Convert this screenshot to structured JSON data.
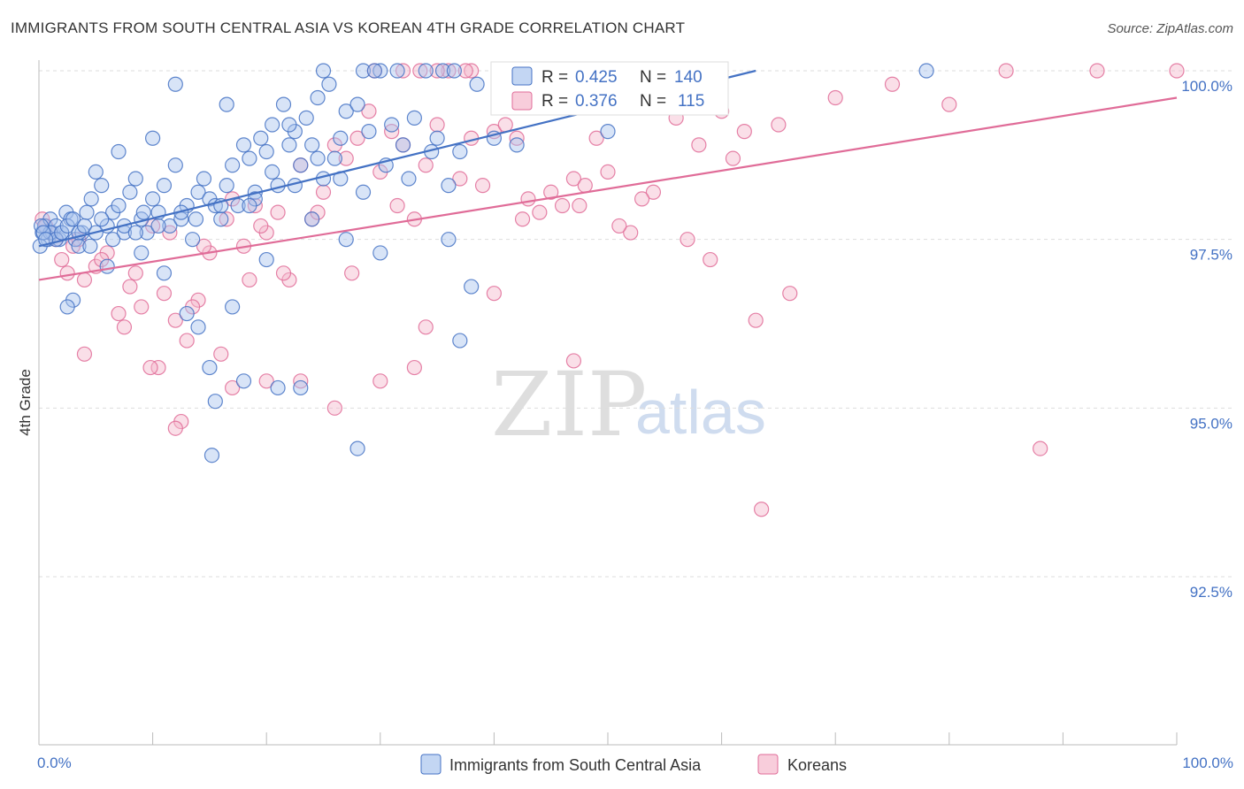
{
  "title": "IMMIGRANTS FROM SOUTH CENTRAL ASIA VS KOREAN 4TH GRADE CORRELATION CHART",
  "source": "Source: ZipAtlas.com",
  "colors": {
    "blue": "#4472c4",
    "blue_fill": "#a9c4ee",
    "pink": "#e06c98",
    "pink_fill": "#f5b8cc",
    "grid": "#dddddd"
  },
  "legend": {
    "r_label": "R =",
    "n_label": "N =",
    "rows": [
      {
        "r": "0.425",
        "n": "140"
      },
      {
        "r": "0.376",
        "n": "115"
      }
    ]
  },
  "bottom_legend": [
    "Immigrants from South Central Asia",
    "Koreans"
  ],
  "watermark": {
    "zip": "ZIP",
    "atlas": "atlas"
  },
  "chart_data": {
    "type": "scatter",
    "ylabel": "4th Grade",
    "xlim": [
      0,
      100
    ],
    "ylim": [
      89.5,
      100.4
    ],
    "x_tick_labels": [
      "0.0%",
      "100.0%"
    ],
    "y_ticks": [
      100,
      97.5,
      95,
      92.5
    ],
    "y_tick_labels": [
      "100.0%",
      "97.5%",
      "95.0%",
      "92.5%"
    ],
    "grid": true,
    "legend_position": "top-center",
    "series": [
      {
        "name": "Immigrants from South Central Asia",
        "color": "#4472c4",
        "trend": {
          "x": [
            0,
            63
          ],
          "y": [
            97.4,
            100.0
          ]
        },
        "points": [
          [
            0.3,
            97.6
          ],
          [
            0.5,
            97.7
          ],
          [
            0.8,
            97.5
          ],
          [
            1.0,
            97.8
          ],
          [
            1.2,
            97.6
          ],
          [
            1.5,
            97.7
          ],
          [
            1.8,
            97.5
          ],
          [
            2.0,
            97.6
          ],
          [
            2.4,
            97.9
          ],
          [
            2.8,
            97.8
          ],
          [
            3.2,
            97.5
          ],
          [
            3.5,
            97.4
          ],
          [
            3.8,
            97.6
          ],
          [
            4.2,
            97.9
          ],
          [
            4.6,
            98.1
          ],
          [
            5.0,
            98.5
          ],
          [
            5.5,
            98.3
          ],
          [
            6.0,
            97.7
          ],
          [
            6.5,
            97.9
          ],
          [
            7.0,
            98.0
          ],
          [
            7.5,
            97.6
          ],
          [
            8.0,
            98.2
          ],
          [
            8.5,
            98.4
          ],
          [
            9.0,
            97.8
          ],
          [
            9.5,
            97.6
          ],
          [
            10.0,
            98.1
          ],
          [
            10.5,
            97.9
          ],
          [
            11.0,
            98.3
          ],
          [
            11.5,
            97.7
          ],
          [
            12.0,
            98.6
          ],
          [
            12.5,
            97.8
          ],
          [
            13.0,
            98.0
          ],
          [
            13.5,
            97.5
          ],
          [
            14.0,
            98.2
          ],
          [
            14.5,
            98.4
          ],
          [
            15.0,
            98.1
          ],
          [
            15.5,
            98.0
          ],
          [
            16.0,
            97.8
          ],
          [
            16.5,
            98.3
          ],
          [
            17.0,
            98.6
          ],
          [
            17.5,
            98.0
          ],
          [
            18.0,
            98.9
          ],
          [
            18.5,
            98.7
          ],
          [
            19.0,
            98.2
          ],
          [
            19.5,
            99.0
          ],
          [
            20.0,
            98.8
          ],
          [
            20.5,
            99.2
          ],
          [
            21.0,
            98.3
          ],
          [
            21.5,
            99.5
          ],
          [
            22.0,
            98.9
          ],
          [
            22.5,
            99.1
          ],
          [
            23.0,
            98.6
          ],
          [
            23.5,
            99.3
          ],
          [
            24.0,
            98.9
          ],
          [
            24.5,
            99.6
          ],
          [
            25.0,
            98.4
          ],
          [
            25.5,
            99.8
          ],
          [
            26.0,
            98.7
          ],
          [
            26.5,
            99.0
          ],
          [
            27.0,
            99.4
          ],
          [
            28.0,
            99.5
          ],
          [
            29.0,
            99.1
          ],
          [
            30.0,
            100.0
          ],
          [
            31.0,
            99.2
          ],
          [
            32.0,
            98.9
          ],
          [
            33.0,
            99.3
          ],
          [
            34.0,
            100.0
          ],
          [
            35.0,
            99.0
          ],
          [
            36.0,
            98.3
          ],
          [
            37.0,
            98.8
          ],
          [
            38.0,
            96.8
          ],
          [
            40.0,
            99.0
          ],
          [
            42.0,
            98.9
          ],
          [
            50.0,
            99.1
          ],
          [
            78.0,
            100.0
          ],
          [
            28.5,
            100.0
          ],
          [
            29.5,
            100.0
          ],
          [
            31.5,
            100.0
          ],
          [
            35.5,
            100.0
          ],
          [
            36.5,
            100.0
          ],
          [
            25.0,
            100.0
          ],
          [
            38.5,
            99.8
          ],
          [
            12.0,
            99.8
          ],
          [
            16.5,
            99.5
          ],
          [
            22.0,
            99.2
          ],
          [
            10.0,
            99.0
          ],
          [
            7.0,
            98.8
          ],
          [
            19.0,
            98.1
          ],
          [
            24.0,
            97.8
          ],
          [
            27.0,
            97.5
          ],
          [
            30.0,
            97.3
          ],
          [
            9.0,
            97.3
          ],
          [
            6.0,
            97.1
          ],
          [
            4.5,
            97.4
          ],
          [
            3.0,
            96.6
          ],
          [
            2.5,
            96.5
          ],
          [
            11.0,
            97.0
          ],
          [
            14.0,
            96.2
          ],
          [
            17.0,
            96.5
          ],
          [
            20.0,
            97.2
          ],
          [
            13.0,
            96.4
          ],
          [
            15.5,
            95.1
          ],
          [
            15.0,
            95.6
          ],
          [
            18.0,
            95.4
          ],
          [
            21.0,
            95.3
          ],
          [
            23.0,
            95.3
          ],
          [
            15.2,
            94.3
          ],
          [
            28.0,
            94.4
          ],
          [
            37.0,
            96.0
          ],
          [
            36.0,
            97.5
          ],
          [
            1.0,
            97.6
          ],
          [
            1.5,
            97.5
          ],
          [
            2.0,
            97.6
          ],
          [
            2.5,
            97.7
          ],
          [
            3.0,
            97.8
          ],
          [
            3.5,
            97.6
          ],
          [
            4.0,
            97.7
          ],
          [
            5.0,
            97.6
          ],
          [
            5.5,
            97.8
          ],
          [
            6.5,
            97.5
          ],
          [
            7.5,
            97.7
          ],
          [
            8.5,
            97.6
          ],
          [
            9.2,
            97.9
          ],
          [
            10.5,
            97.7
          ],
          [
            12.5,
            97.9
          ],
          [
            13.8,
            97.8
          ],
          [
            16.0,
            98.0
          ],
          [
            18.5,
            98.0
          ],
          [
            20.5,
            98.5
          ],
          [
            22.5,
            98.3
          ],
          [
            24.5,
            98.7
          ],
          [
            26.5,
            98.4
          ],
          [
            28.5,
            98.2
          ],
          [
            30.5,
            98.6
          ],
          [
            32.5,
            98.4
          ],
          [
            34.5,
            98.8
          ],
          [
            0.1,
            97.4
          ],
          [
            0.2,
            97.7
          ],
          [
            0.4,
            97.6
          ],
          [
            0.6,
            97.5
          ]
        ]
      },
      {
        "name": "Koreans",
        "color": "#e06c98",
        "trend": {
          "x": [
            0,
            100
          ],
          "y": [
            96.9,
            99.6
          ]
        },
        "points": [
          [
            0.3,
            97.8
          ],
          [
            0.6,
            97.7
          ],
          [
            1.0,
            97.6
          ],
          [
            1.5,
            97.5
          ],
          [
            2.0,
            97.2
          ],
          [
            2.5,
            97.0
          ],
          [
            3.0,
            97.4
          ],
          [
            4.0,
            96.9
          ],
          [
            5.0,
            97.1
          ],
          [
            6.0,
            97.3
          ],
          [
            7.0,
            96.4
          ],
          [
            8.0,
            96.8
          ],
          [
            9.0,
            96.5
          ],
          [
            10.0,
            97.7
          ],
          [
            11.0,
            96.7
          ],
          [
            12.0,
            96.3
          ],
          [
            13.0,
            96.0
          ],
          [
            14.0,
            96.6
          ],
          [
            15.0,
            97.3
          ],
          [
            16.0,
            95.8
          ],
          [
            17.0,
            98.1
          ],
          [
            18.0,
            97.4
          ],
          [
            19.0,
            98.0
          ],
          [
            20.0,
            97.6
          ],
          [
            21.0,
            97.9
          ],
          [
            22.0,
            96.9
          ],
          [
            23.0,
            98.6
          ],
          [
            24.0,
            97.8
          ],
          [
            25.0,
            98.2
          ],
          [
            26.0,
            98.9
          ],
          [
            27.0,
            98.7
          ],
          [
            28.0,
            99.0
          ],
          [
            29.0,
            99.4
          ],
          [
            30.0,
            98.5
          ],
          [
            31.0,
            99.1
          ],
          [
            32.0,
            98.9
          ],
          [
            33.0,
            97.8
          ],
          [
            34.0,
            98.6
          ],
          [
            35.0,
            99.2
          ],
          [
            36.0,
            100.0
          ],
          [
            37.0,
            98.4
          ],
          [
            38.0,
            99.0
          ],
          [
            39.0,
            98.3
          ],
          [
            40.0,
            99.1
          ],
          [
            41.0,
            99.2
          ],
          [
            42.0,
            99.0
          ],
          [
            43.0,
            98.1
          ],
          [
            44.0,
            97.9
          ],
          [
            45.0,
            98.2
          ],
          [
            46.0,
            98.0
          ],
          [
            47.0,
            98.4
          ],
          [
            48.0,
            98.3
          ],
          [
            49.0,
            99.0
          ],
          [
            50.0,
            98.5
          ],
          [
            52.0,
            97.6
          ],
          [
            54.0,
            98.2
          ],
          [
            56.0,
            99.3
          ],
          [
            58.0,
            98.9
          ],
          [
            60.0,
            99.4
          ],
          [
            62.0,
            99.1
          ],
          [
            65.0,
            99.2
          ],
          [
            70.0,
            99.6
          ],
          [
            75.0,
            99.8
          ],
          [
            80.0,
            99.5
          ],
          [
            85.0,
            100.0
          ],
          [
            88.0,
            94.4
          ],
          [
            93.0,
            100.0
          ],
          [
            100.0,
            100.0
          ],
          [
            63.0,
            96.3
          ],
          [
            66.0,
            96.7
          ],
          [
            63.5,
            93.5
          ],
          [
            47.0,
            95.7
          ],
          [
            33.0,
            95.6
          ],
          [
            30.0,
            95.4
          ],
          [
            26.0,
            95.0
          ],
          [
            23.0,
            95.4
          ],
          [
            20.0,
            95.4
          ],
          [
            17.0,
            95.3
          ],
          [
            12.5,
            94.8
          ],
          [
            12.0,
            94.7
          ],
          [
            10.5,
            95.6
          ],
          [
            9.8,
            95.6
          ],
          [
            4.0,
            95.8
          ],
          [
            7.5,
            96.2
          ],
          [
            13.5,
            96.5
          ],
          [
            18.5,
            96.9
          ],
          [
            21.5,
            97.0
          ],
          [
            27.5,
            97.0
          ],
          [
            34.0,
            96.2
          ],
          [
            40.0,
            96.7
          ],
          [
            42.5,
            97.8
          ],
          [
            47.5,
            98.0
          ],
          [
            51.0,
            97.7
          ],
          [
            53.0,
            98.1
          ],
          [
            57.0,
            97.5
          ],
          [
            59.0,
            97.2
          ],
          [
            61.0,
            98.7
          ],
          [
            29.5,
            100.0
          ],
          [
            32.0,
            100.0
          ],
          [
            35.0,
            100.0
          ],
          [
            38.0,
            100.0
          ],
          [
            40.5,
            100.0
          ],
          [
            43.0,
            100.0
          ],
          [
            46.5,
            100.0
          ],
          [
            33.5,
            100.0
          ],
          [
            37.5,
            100.0
          ],
          [
            3.5,
            97.5
          ],
          [
            5.5,
            97.2
          ],
          [
            8.5,
            97.0
          ],
          [
            11.5,
            97.6
          ],
          [
            14.5,
            97.4
          ],
          [
            16.5,
            97.8
          ],
          [
            19.5,
            97.7
          ],
          [
            24.5,
            97.9
          ],
          [
            31.5,
            98.0
          ]
        ]
      }
    ]
  }
}
